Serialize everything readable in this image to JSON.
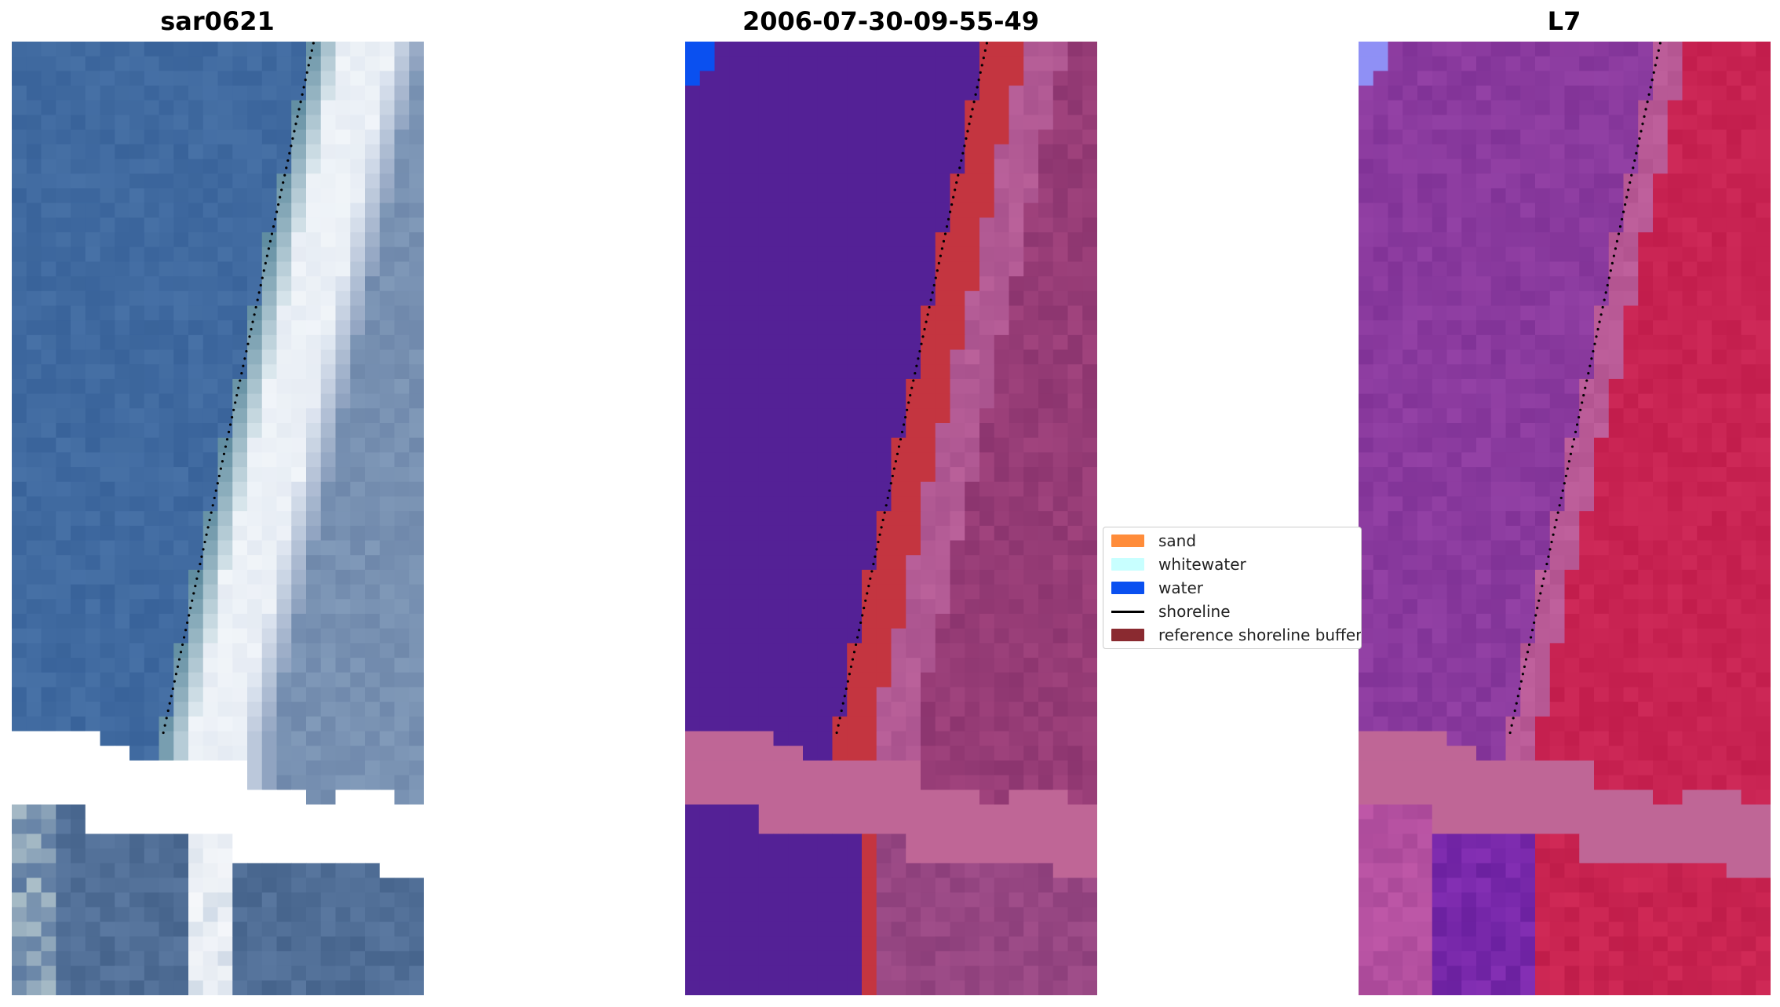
{
  "figure": {
    "titles": [
      "sar0621",
      "2006-07-30-09-55-49",
      "L7"
    ]
  },
  "legend": {
    "items": [
      {
        "label": "sand",
        "kind": "patch",
        "color": "#ff8c3a"
      },
      {
        "label": "whitewater",
        "kind": "patch",
        "color": "#c8ffff"
      },
      {
        "label": "water",
        "kind": "patch",
        "color": "#0a50f0"
      },
      {
        "label": "shoreline",
        "kind": "line",
        "color": "#000000"
      },
      {
        "label": "reference shoreline buffer",
        "kind": "patch",
        "color": "#8a2a30"
      }
    ]
  },
  "chart_data": [
    {
      "type": "heatmap",
      "title": "sar0621",
      "description_colors": {
        "water_sea": "#3f6aa0",
        "whitewater": "#f2f4f8",
        "land": "#7a93b4",
        "nodata": "#ffffff"
      },
      "grid": false
    },
    {
      "type": "heatmap",
      "title": "2006-07-30-09-55-49",
      "description_colors": {
        "water_class": "#542196",
        "buffer": "#c43540",
        "land": "#a86098",
        "nodata_band": "#bf6696",
        "water_bright": "#0a50f0"
      },
      "grid": false
    },
    {
      "type": "heatmap",
      "title": "L7",
      "description_colors": {
        "water": "#8a3a9e",
        "land": "#c81e50",
        "nodata_band": "#bf6696",
        "corner": "#8f90f5"
      },
      "grid": false
    }
  ]
}
